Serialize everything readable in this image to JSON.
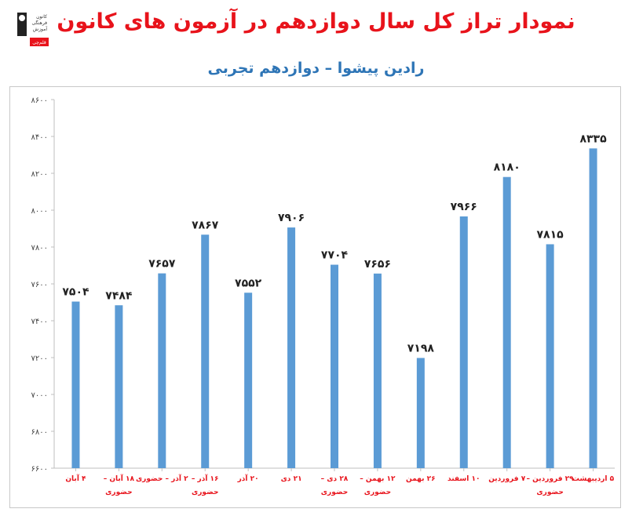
{
  "header": {
    "title": "نمودار تراز کل سال دوازدهم در آزمون های کانون",
    "subtitle": "رادین پیشوا – دوازدهم تجربی"
  },
  "logo": {
    "text_lines": [
      "کانون",
      "فرهنگی",
      "آموزش"
    ],
    "badge": "قلم‌چی"
  },
  "chart_data": {
    "type": "bar",
    "title": "نمودار تراز کل سال دوازدهم در آزمون های کانون",
    "subtitle": "رادین پیشوا – دوازدهم تجربی",
    "categories": [
      [
        "۴ آبان"
      ],
      [
        "۱۸ آبان –",
        "حضوری"
      ],
      [
        "۲ آذر – حضوری"
      ],
      [
        "۱۶ آذر –",
        "حضوری"
      ],
      [
        "۲۰ آذر"
      ],
      [
        "۲۱ دی"
      ],
      [
        "۲۸ دی –",
        "حضوری"
      ],
      [
        "۱۲ بهمن –",
        "حضوری"
      ],
      [
        "۲۶ بهمن"
      ],
      [
        "۱۰ اسفند"
      ],
      [
        "۷ فروردین"
      ],
      [
        "۲۹ فروردین –",
        "حضوری"
      ],
      [
        "۵ اردیبهشت"
      ]
    ],
    "values": [
      7504,
      7484,
      7657,
      7867,
      7552,
      7906,
      7704,
      7656,
      7198,
      7966,
      8180,
      7815,
      8335
    ],
    "value_labels": [
      "۷۵۰۴",
      "۷۴۸۴",
      "۷۶۵۷",
      "۷۸۶۷",
      "۷۵۵۲",
      "۷۹۰۶",
      "۷۷۰۴",
      "۷۶۵۶",
      "۷۱۹۸",
      "۷۹۶۶",
      "۸۱۸۰",
      "۷۸۱۵",
      "۸۳۳۵"
    ],
    "ylim": [
      6600,
      8600
    ],
    "yticks": [
      6600,
      6800,
      7000,
      7200,
      7400,
      7600,
      7800,
      8000,
      8200,
      8400,
      8600
    ],
    "ytick_labels": [
      "۶۶۰۰",
      "۶۸۰۰",
      "۷۰۰۰",
      "۷۲۰۰",
      "۷۴۰۰",
      "۷۶۰۰",
      "۷۸۰۰",
      "۸۰۰۰",
      "۸۲۰۰",
      "۸۴۰۰",
      "۸۶۰۰"
    ],
    "grid": false,
    "legend": "none",
    "colors": {
      "bar": "#5b9bd5",
      "tick_label": "#444444",
      "category_label": "#e8131b",
      "title": "#e8131b",
      "subtitle": "#2e75b6"
    }
  }
}
